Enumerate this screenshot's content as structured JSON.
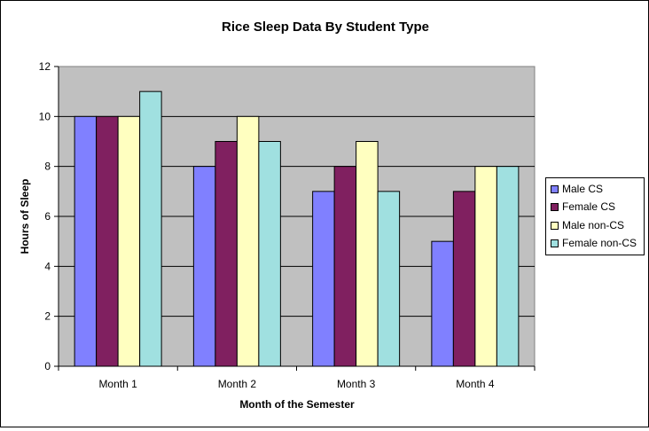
{
  "chart_data": {
    "type": "bar",
    "title": "Rice Sleep Data By Student Type",
    "xlabel": "Month of the Semester",
    "ylabel": "Hours of Sleep",
    "categories": [
      "Month 1",
      "Month 2",
      "Month 3",
      "Month 4"
    ],
    "ylim": [
      0,
      12
    ],
    "yticks": [
      0,
      2,
      4,
      6,
      8,
      10,
      12
    ],
    "grid": true,
    "legend_position": "right",
    "plot_background": "#c0c0c0",
    "series": [
      {
        "name": "Male CS",
        "color": "#8080ff",
        "values": [
          10,
          8,
          7,
          5
        ]
      },
      {
        "name": "Female CS",
        "color": "#802060",
        "values": [
          10,
          9,
          8,
          7
        ]
      },
      {
        "name": "Male non-CS",
        "color": "#ffffc0",
        "values": [
          10,
          10,
          9,
          8
        ]
      },
      {
        "name": "Female non-CS",
        "color": "#a0e0e0",
        "values": [
          11,
          9,
          7,
          8
        ]
      }
    ]
  }
}
